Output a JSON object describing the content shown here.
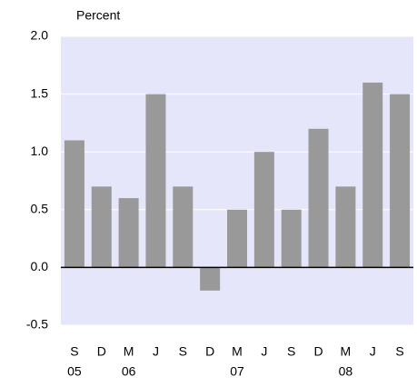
{
  "chart_data": {
    "type": "bar",
    "y_axis_label": "Percent",
    "categories": [
      "S",
      "D",
      "M",
      "J",
      "S",
      "D",
      "M",
      "J",
      "S",
      "D",
      "M",
      "J",
      "S"
    ],
    "x_group_labels": [
      "05",
      null,
      "06",
      null,
      null,
      null,
      "07",
      null,
      null,
      null,
      "08",
      null,
      null
    ],
    "values": [
      1.1,
      0.7,
      0.6,
      1.5,
      0.7,
      -0.2,
      0.5,
      1.0,
      0.5,
      1.2,
      0.7,
      1.6,
      1.5
    ],
    "color": "#999999",
    "ylim": [
      -0.5,
      2.0
    ],
    "yticks": [
      -0.5,
      {
        "value": 0,
        "label": "0.0"
      },
      0.5,
      {
        "value": 1,
        "label": "1.0"
      },
      1.5,
      {
        "value": 2,
        "label": "2.0"
      }
    ],
    "grid": true
  }
}
